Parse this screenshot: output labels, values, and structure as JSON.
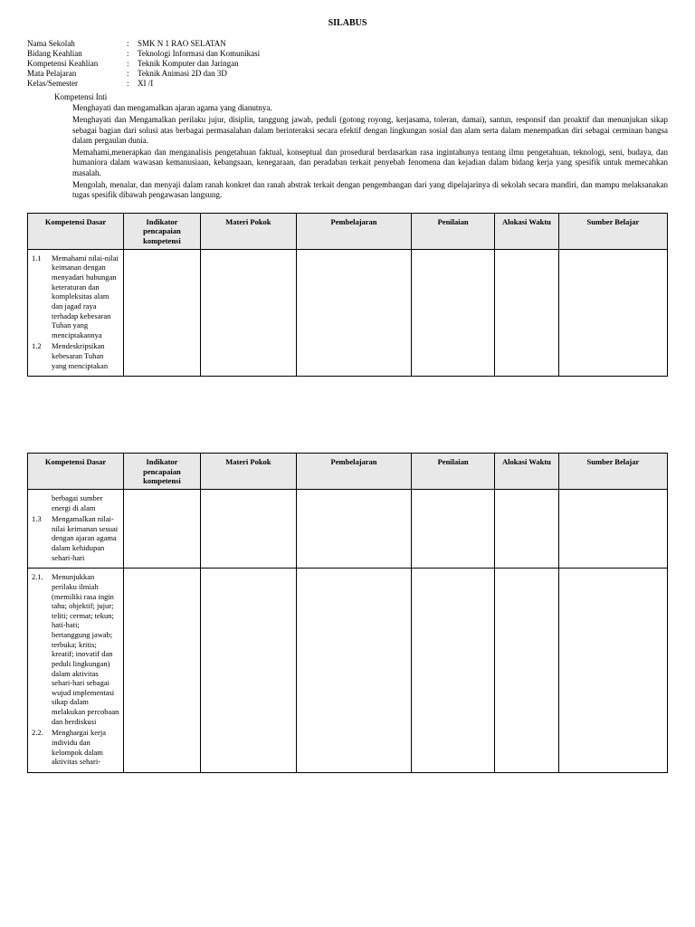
{
  "title": "SILABUS",
  "info": {
    "rows": [
      {
        "label": "Nama Sekolah",
        "value": "SMK N 1 RAO SELATAN"
      },
      {
        "label": "Bidang Keahlian",
        "value": "Teknologi Informasi dan Komunikasi"
      },
      {
        "label": "Kompetensi Keahlian",
        "value": "Teknik Komputer dan Jaringan"
      },
      {
        "label": "Mata Pelajaran",
        "value": "Teknik Animasi 2D dan 3D"
      },
      {
        "label": "Kelas/Semester",
        "value": "XI /I"
      }
    ]
  },
  "ki": {
    "label": "Kompetensi Inti",
    "items": [
      "Menghayati dan mengamalkan ajaran agama yang dianutnya.",
      "Menghayati dan Mengamalkan perilaku jujur, disiplin, tanggung jawab, peduli (gotong royong, kerjasama, toleran, damai), santun, responsif dan proaktif dan menunjukan sikap sebagai bagian dari solusi atas berbagai permasalahan dalam berinteraksi secara efektif dengan lingkungan sosial dan alam serta dalam menempatkan diri sebagai cerminan bangsa dalam pergaulan dunia.",
      "Memahami,menerapkan dan menganalisis pengetahuan faktual, konseptual dan prosedural berdasarkan rasa ingintahunya tentang ilmu pengetahuan, teknologi, seni, budaya, dan humaniora dalam wawasan kemanusiaan, kebangsaan, kenegaraan, dan peradaban terkait penyebab fenomena dan kejadian dalam bidang kerja yang spesifik untuk memecahkan masalah.",
      "Mengolah, menalar, dan menyaji dalam ranah konkret dan ranah abstrak terkait dengan pengembangan dari yang dipelajarinya di sekolah secara mandiri, dan mampu melaksanakan tugas spesifik dibawah pengawasan langsung."
    ]
  },
  "headers": {
    "kd": "Kompetensi Dasar",
    "ind": "Indikator pencapaian kompetensi",
    "mp": "Materi Pokok",
    "pem": "Pembelajaran",
    "pen": "Penilaian",
    "aw": "Alokasi Waktu",
    "sb": "Sumber Belajar"
  },
  "table1": {
    "kd": [
      {
        "num": "1.1",
        "text": "Memahami nilai-nilai keimanan dengan menyadari hubungan keteraturan dan kompleksitas alam dan jagad raya terhadap kebesaran Tuhan yang menciptakannya"
      },
      {
        "num": "1.2",
        "text": "Mendeskripsikan kebesaran Tuhan yang menciptakan"
      }
    ]
  },
  "table2": {
    "row1": {
      "pre": "berbagai sumber energi di alam",
      "kd": [
        {
          "num": "1.3",
          "text": "Mengamalkan nilai-nilai keimanan sesuai dengan ajaran agama dalam kehidupan sehari-hari"
        }
      ]
    },
    "row2": {
      "kd": [
        {
          "num": "2.1.",
          "text": "Menunjukkan perilaku ilmiah (memiliki rasa ingin tahu; objektif; jujur; teliti; cermat; tekun; hati-hati; bertanggung jawab; terbuka; kritis; kreatif; inovatif dan peduli lingkungan) dalam aktivitas sehari-hari sebagai wujud implementasi sikap dalam melakukan percobaan dan berdiskusi"
        },
        {
          "num": "2.2.",
          "text": "Menghargai kerja individu dan kelompok dalam aktivitas sehari-"
        }
      ]
    }
  }
}
